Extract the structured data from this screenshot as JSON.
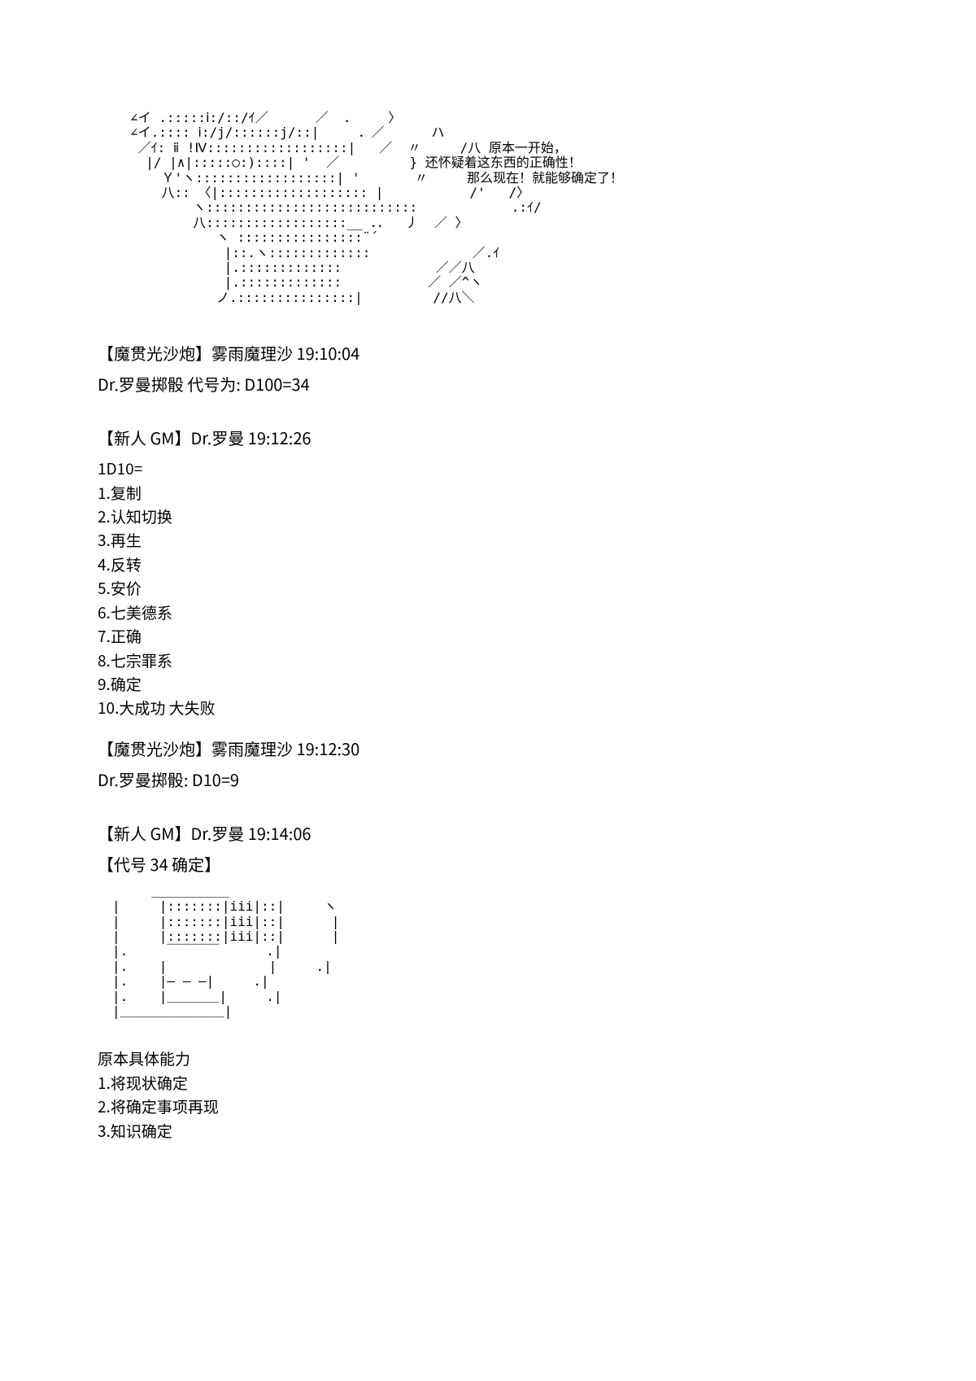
{
  "ascii_art_1": "∠イ .:::::ⅰ:/::/ｲ／      ／  ．    〉\n∠イ.:::: ⅰ:/j/::::::j/::|     ．／      ハ\n ／ｲ: ⅱ !Ⅳ::::::::::::::::::|   ／  〃     /八 原本一开始，\n  |/ |∧|:::::○:)::::| '  ／         } 还怀疑着这东西的正确性！\n    Ｙ'ヽ::::::::::::::::::| '       〃     那么现在！就能够确定了！\n    八:: 〈|::::::::::::::::::: |           /'   /〉\n        ヽ:::::::::::::::::::::::::::            .:ｲ/\n        八::::::::::::::::::__ ．．  丿  ／ 〉\n           ヽ ::::::::::::::::¨´\n            |::.ヽ:::::::::::::             ／.ｲ\n            |.:::::::::::::            ／／八\n            |.:::::::::::::           ／ ／^ヽ\n           ノ.:::::::::::::::|         //八＼",
  "msg1_header": "【魔贯光沙炮】雾雨魔理沙 19:10:04",
  "msg1_body": "Dr.罗曼掷骰 代号为: D100=34",
  "msg2_header": "【新人 GM】Dr.罗曼 19:12:26",
  "d10_list": "1D10=\n1.复制\n2.认知切换\n3.再生\n4.反转\n5.安价\n6.七美德系\n7.正确\n8.七宗罪系\n9.确定\n10.大成功 大失败",
  "msg3_header": "【魔贯光沙炮】雾雨魔理沙 19:12:30",
  "msg3_body": "Dr.罗曼掷骰: D10=9",
  "msg4_header": "【新人 GM】Dr.罗曼 19:14:06",
  "msg4_sub": "【代号 34 确定】",
  "ascii_art_2": "     ＿＿＿＿＿＿\n|     |:::::::|iii|::|     ヽ\n|     |:::::::|iii|::|      |\n|     |:::::::|iii|::|      |\n|.     ￣￣￣￣      .|\n|.    |             |     .|\n|.    |― ― ―|     .|\n|.    |＿＿＿＿|     .|\n|＿＿＿＿＿＿＿＿|",
  "ability_block": "原本具体能力\n1.将现状确定\n2.将确定事项再现\n3.知识确定"
}
